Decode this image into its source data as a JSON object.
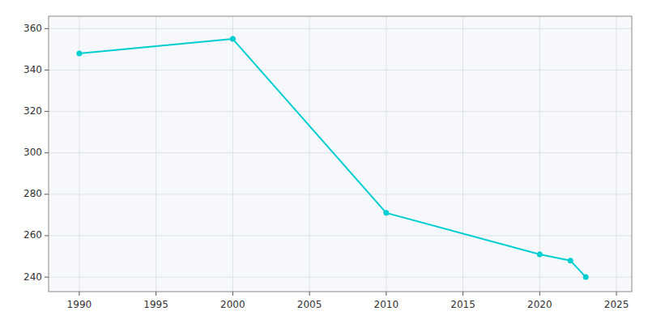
{
  "chart_data": {
    "type": "line",
    "x": [
      1990,
      2000,
      2010,
      2020,
      2022,
      2023
    ],
    "values": [
      348,
      355,
      271,
      251,
      248,
      240
    ],
    "color": "#00CED1",
    "marker": "circle",
    "xlim": [
      1988,
      2026
    ],
    "ylim": [
      233,
      366
    ],
    "xticks": [
      1990,
      1995,
      2000,
      2005,
      2010,
      2015,
      2020,
      2025
    ],
    "yticks": [
      240,
      260,
      280,
      300,
      320,
      340,
      360
    ],
    "grid": true
  }
}
